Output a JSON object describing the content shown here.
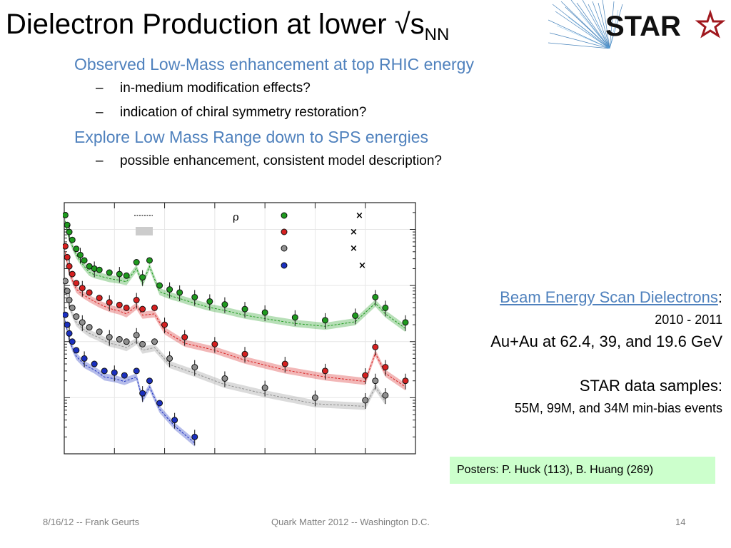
{
  "slide": {
    "title": "Dielectron Production at lower √s",
    "title_sub": "NN",
    "logo_text": "STAR",
    "bullets": [
      {
        "level": 1,
        "text": "Observed Low-Mass enhancement at top RHIC energy"
      },
      {
        "level": 2,
        "text": "in-medium modification effects?"
      },
      {
        "level": 2,
        "text": "indication of chiral symmetry restoration?"
      },
      {
        "level": 1,
        "text": "Explore Low Mass Range down to SPS energies"
      },
      {
        "level": 2,
        "text": "possible enhancement, consistent model description?"
      }
    ],
    "bullet_dash": "–",
    "side": {
      "link": "Beam Energy Scan Dielectrons",
      "colon": ":",
      "years": "2010 - 2011",
      "energies": "Au+Au at 62.4, 39, and 19.6 GeV",
      "samples_title": "STAR data samples:",
      "samples": "55M, 99M, and 34M min-bias events"
    },
    "poster": "Posters: P. Huck (113), B. Huang (269)",
    "footer": {
      "left": "8/16/12 -- Frank Geurts",
      "center": "Quark Matter 2012 -- Washington D.C.",
      "right": "14"
    }
  },
  "chart_data": {
    "type": "scatter",
    "title": "",
    "xlabel": "",
    "ylabel": "",
    "legend_symbol": "ρ",
    "series": [
      {
        "color": "#1e9a1e",
        "x": [
          0.01,
          0.03,
          0.05,
          0.08,
          0.12,
          0.16,
          0.2,
          0.25,
          0.3,
          0.35,
          0.45,
          0.55,
          0.62,
          0.72,
          0.78,
          0.85,
          0.95,
          1.05,
          1.15,
          1.3,
          1.45,
          1.6,
          1.8,
          2.0,
          2.3,
          2.6,
          2.9,
          3.1,
          3.2,
          3.4
        ],
        "y": [
          1.8,
          1.2,
          0.9,
          0.65,
          0.45,
          0.35,
          0.28,
          0.22,
          0.2,
          0.19,
          0.17,
          0.16,
          0.15,
          0.26,
          0.14,
          0.28,
          0.1,
          0.085,
          0.075,
          0.062,
          0.052,
          0.046,
          0.038,
          0.033,
          0.027,
          0.024,
          0.029,
          0.062,
          0.04,
          0.022
        ]
      },
      {
        "color": "#d62020",
        "x": [
          0.01,
          0.03,
          0.05,
          0.08,
          0.12,
          0.18,
          0.25,
          0.35,
          0.45,
          0.55,
          0.62,
          0.72,
          0.78,
          0.9,
          1.0,
          1.2,
          1.5,
          1.8,
          2.2,
          2.6,
          3.0,
          3.1,
          3.2,
          3.4
        ],
        "y": [
          0.5,
          0.32,
          0.22,
          0.16,
          0.11,
          0.09,
          0.075,
          0.06,
          0.05,
          0.045,
          0.04,
          0.055,
          0.038,
          0.04,
          0.02,
          0.012,
          0.009,
          0.006,
          0.004,
          0.003,
          0.0025,
          0.008,
          0.0035,
          0.002
        ]
      },
      {
        "color": "#909090",
        "x": [
          0.01,
          0.03,
          0.05,
          0.08,
          0.12,
          0.18,
          0.25,
          0.35,
          0.45,
          0.55,
          0.62,
          0.72,
          0.78,
          0.9,
          1.05,
          1.3,
          1.6,
          2.0,
          2.5,
          3.0,
          3.1,
          3.2
        ],
        "y": [
          0.12,
          0.08,
          0.055,
          0.04,
          0.028,
          0.022,
          0.018,
          0.015,
          0.012,
          0.011,
          0.01,
          0.013,
          0.009,
          0.01,
          0.005,
          0.0035,
          0.0022,
          0.0015,
          0.001,
          0.0009,
          0.002,
          0.0011
        ]
      },
      {
        "color": "#1a2fbf",
        "x": [
          0.01,
          0.03,
          0.05,
          0.08,
          0.12,
          0.2,
          0.3,
          0.4,
          0.5,
          0.6,
          0.72,
          0.78,
          0.85,
          0.95,
          1.1,
          1.3
        ],
        "y": [
          0.03,
          0.02,
          0.014,
          0.01,
          0.007,
          0.005,
          0.004,
          0.003,
          0.0028,
          0.0025,
          0.003,
          0.0012,
          0.002,
          0.0008,
          0.0004,
          0.0002
        ]
      }
    ]
  }
}
